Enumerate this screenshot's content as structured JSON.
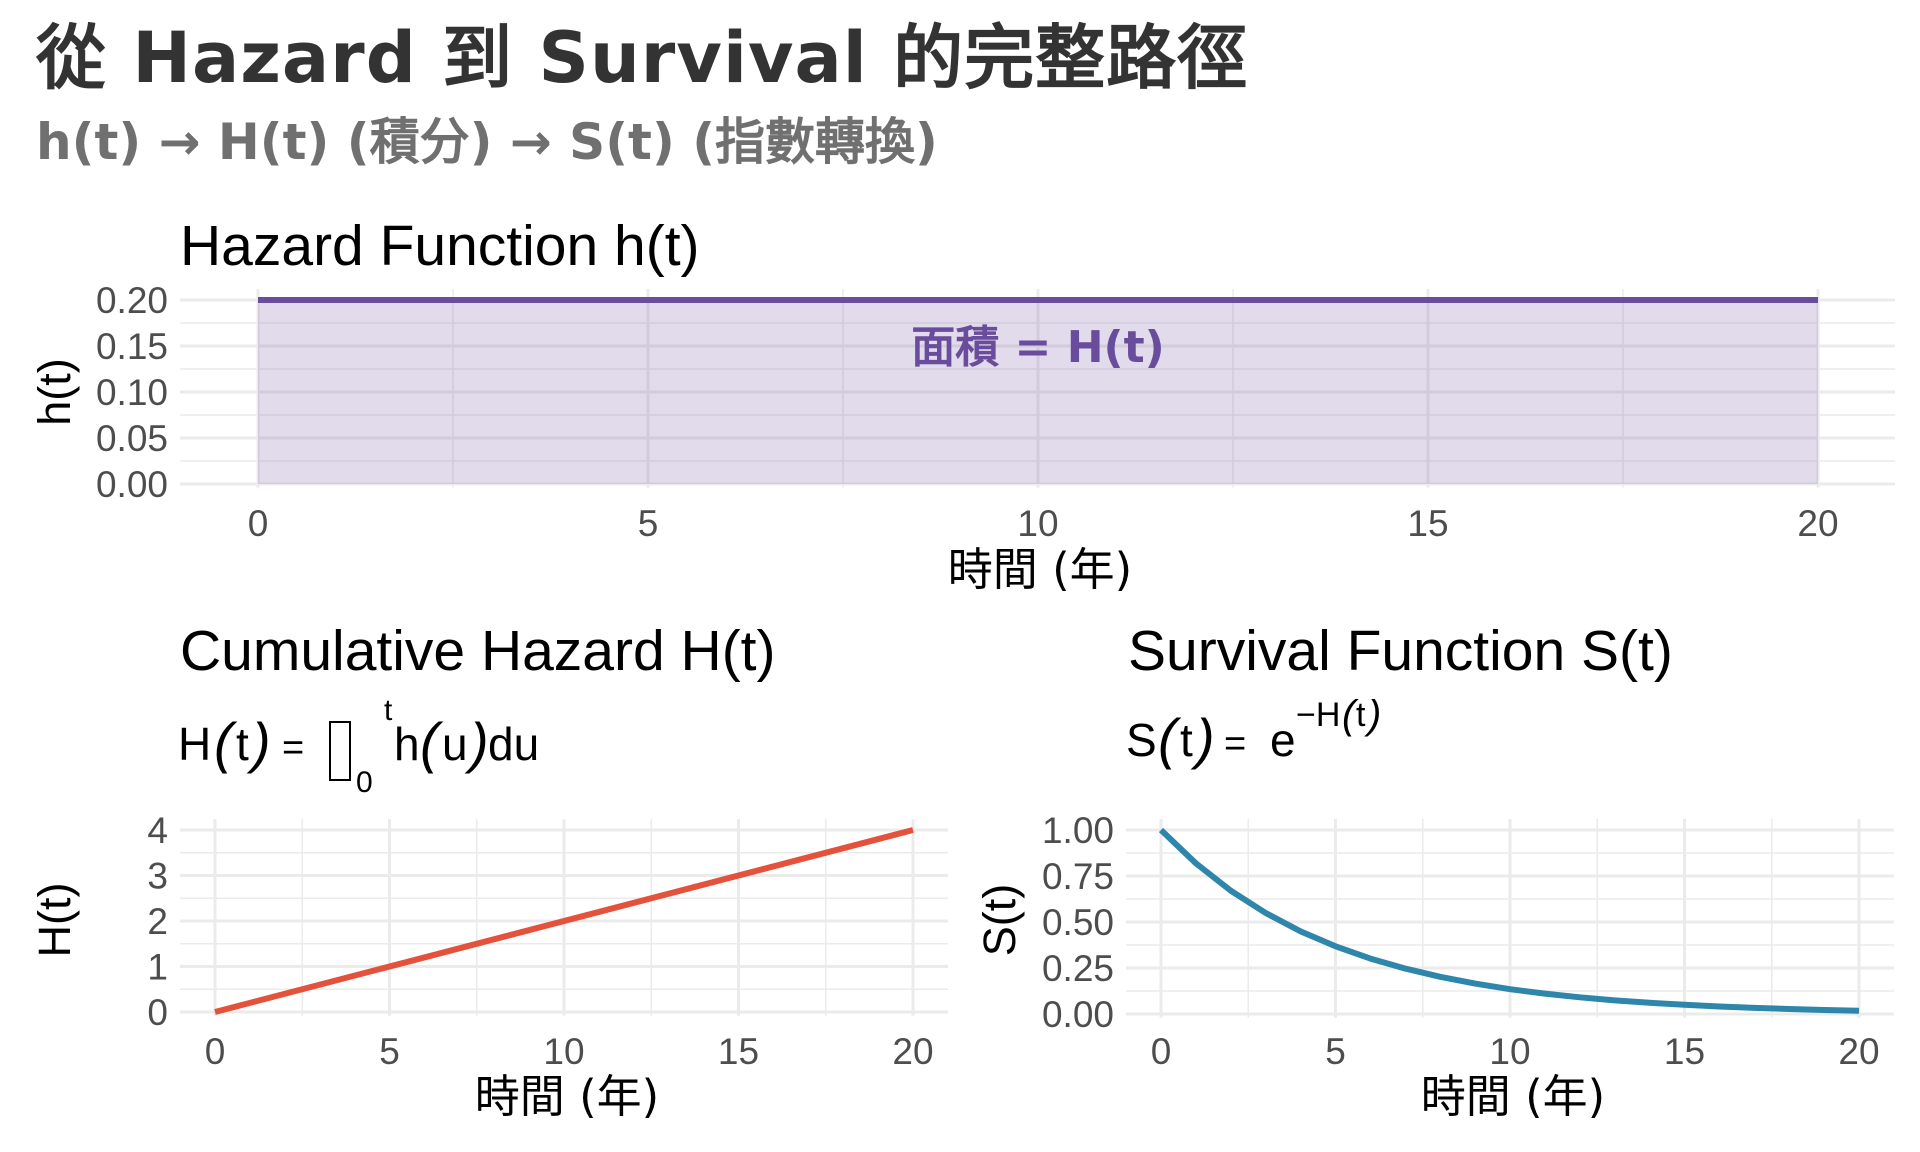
{
  "header": {
    "title": "從 Hazard 到 Survival 的完整路徑",
    "subtitle": "h(t) → H(t) (積分) → S(t) (指數轉換)"
  },
  "colors": {
    "hazard": "#6A4C9C",
    "hazard_fill": "#E0DAE9",
    "cumulative": "#E4523B",
    "survival": "#2E86AB",
    "grid": "#EBEBEB"
  },
  "chart_data": [
    {
      "id": "hazard",
      "type": "area",
      "title": "Hazard Function h(t)",
      "xlabel": "時間 (年)",
      "ylabel": "h(t)",
      "x": [
        0,
        20
      ],
      "y": [
        0.2,
        0.2
      ],
      "xlim": [
        0,
        20
      ],
      "ylim": [
        0,
        0.2
      ],
      "xticks": [
        "0",
        "5",
        "10",
        "15",
        "20"
      ],
      "yticks": [
        "0.00",
        "0.05",
        "0.10",
        "0.15",
        "0.20"
      ],
      "annotation": "面積 = H(t)",
      "grid": true
    },
    {
      "id": "cumulative",
      "type": "line",
      "title": "Cumulative Hazard H(t)",
      "formula": "H(t) = ∫₀ᵗ h(u) du",
      "xlabel": "時間 (年)",
      "ylabel": "H(t)",
      "x": [
        0,
        20
      ],
      "y": [
        0,
        4
      ],
      "xlim": [
        0,
        20
      ],
      "ylim": [
        0,
        4
      ],
      "xticks": [
        "0",
        "5",
        "10",
        "15",
        "20"
      ],
      "yticks": [
        "0",
        "1",
        "2",
        "3",
        "4"
      ],
      "grid": true
    },
    {
      "id": "survival",
      "type": "line",
      "title": "Survival Function S(t)",
      "formula": "S(t) = e^(−H(t))",
      "xlabel": "時間 (年)",
      "ylabel": "S(t)",
      "x": [
        0,
        1,
        2,
        3,
        4,
        5,
        6,
        7,
        8,
        9,
        10,
        11,
        12,
        13,
        14,
        15,
        16,
        17,
        18,
        19,
        20
      ],
      "y": [
        1.0,
        0.819,
        0.67,
        0.549,
        0.449,
        0.368,
        0.301,
        0.247,
        0.202,
        0.165,
        0.135,
        0.111,
        0.091,
        0.074,
        0.061,
        0.05,
        0.041,
        0.033,
        0.027,
        0.022,
        0.018
      ],
      "xlim": [
        0,
        20
      ],
      "ylim": [
        0,
        1
      ],
      "xticks": [
        "0",
        "5",
        "10",
        "15",
        "20"
      ],
      "yticks": [
        "0.00",
        "0.25",
        "0.50",
        "0.75",
        "1.00"
      ],
      "grid": true
    }
  ]
}
